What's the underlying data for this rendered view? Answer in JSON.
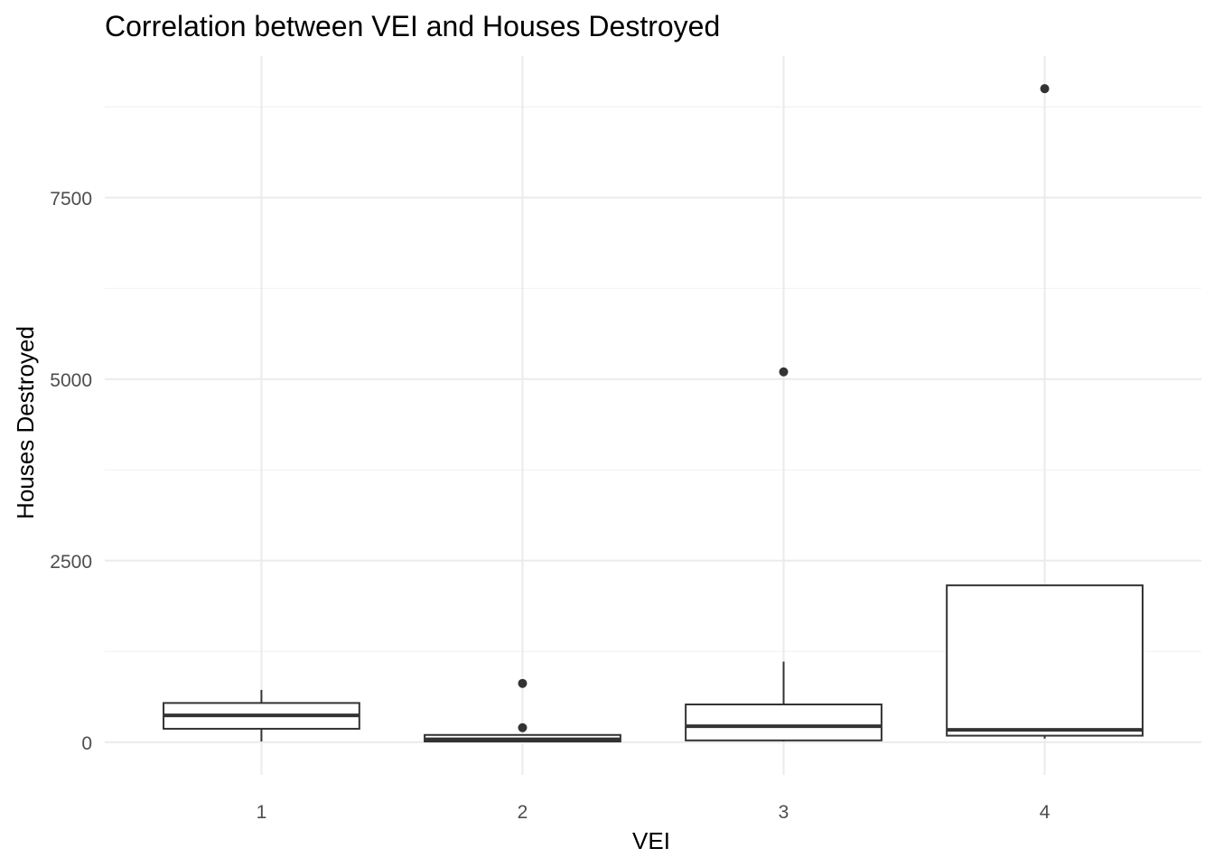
{
  "chart_data": {
    "type": "box",
    "title": "Correlation between VEI and Houses Destroyed",
    "xlabel": "VEI",
    "ylabel": "Houses Destroyed",
    "categories": [
      "1",
      "2",
      "3",
      "4"
    ],
    "y_ticks": [
      0,
      2500,
      5000,
      7500
    ],
    "y_tick_labels": [
      "0",
      "2500",
      "5000",
      "7500"
    ],
    "ylim": [
      -450,
      9450
    ],
    "grid": true,
    "boxes": [
      {
        "category": "1",
        "whisker_low": 10,
        "q1": 185,
        "median": 370,
        "q3": 540,
        "whisker_high": 720,
        "outliers": []
      },
      {
        "category": "2",
        "whisker_low": 0,
        "q1": 10,
        "median": 40,
        "q3": 100,
        "whisker_high": 100,
        "outliers": [
          200,
          810
        ]
      },
      {
        "category": "3",
        "whisker_low": 10,
        "q1": 25,
        "median": 220,
        "q3": 520,
        "whisker_high": 1110,
        "outliers": [
          5100
        ]
      },
      {
        "category": "4",
        "whisker_low": 50,
        "q1": 90,
        "median": 170,
        "q3": 2160,
        "whisker_high": 2160,
        "outliers": [
          9000
        ]
      }
    ]
  }
}
